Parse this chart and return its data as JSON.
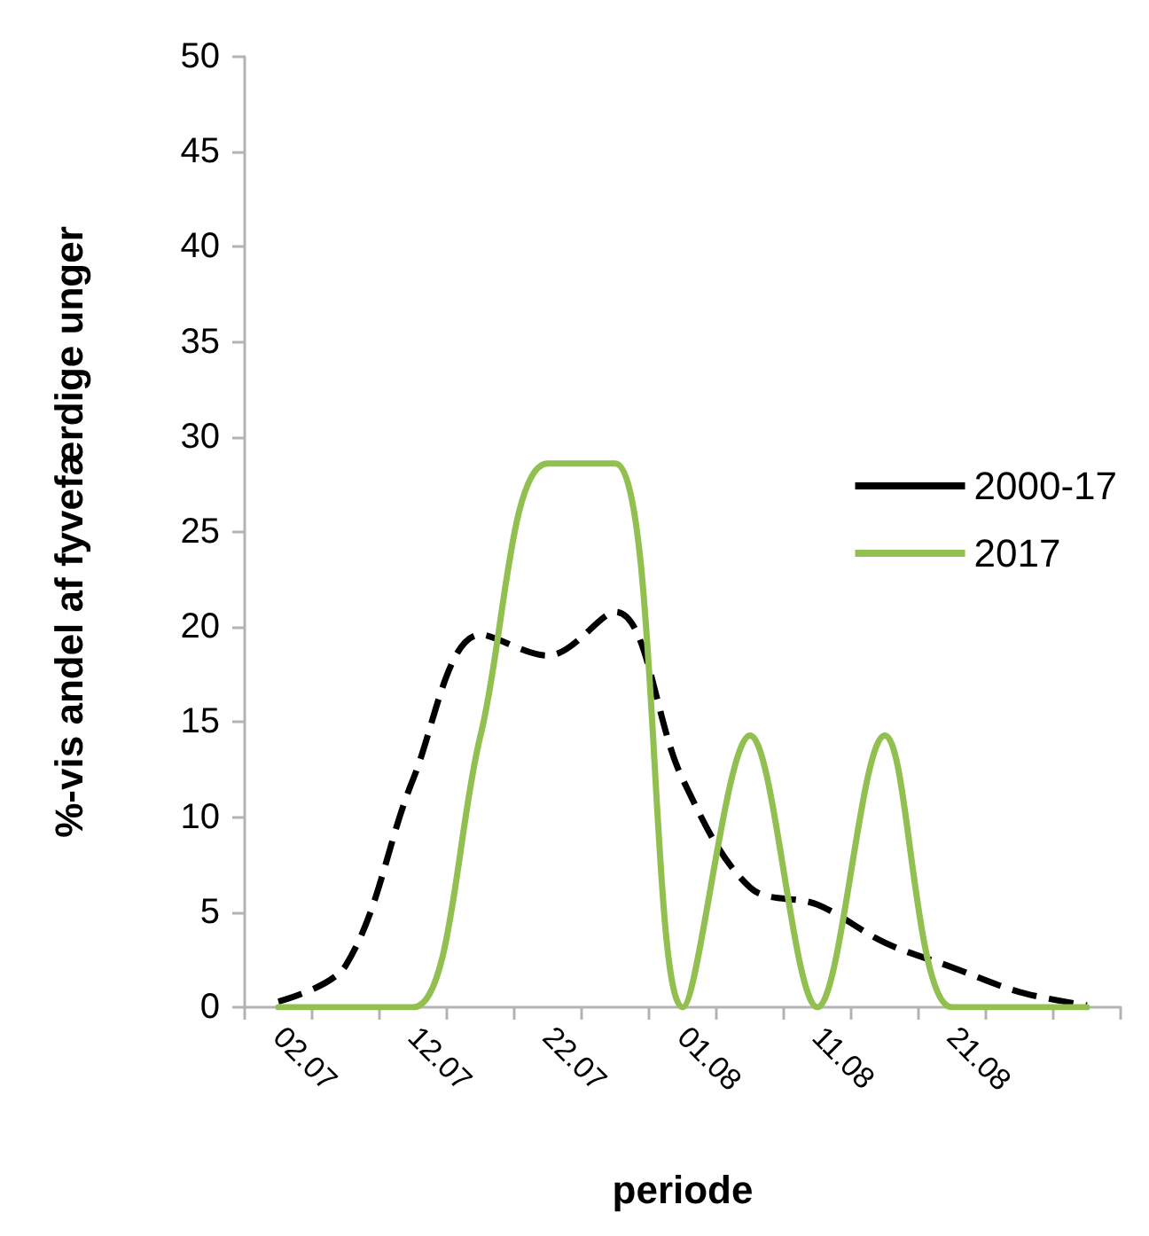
{
  "chart_data": {
    "type": "line",
    "xlabel": "periode",
    "ylabel": "%-vis andel af fyvefærdige unger",
    "categories": [
      "02.07",
      null,
      "12.07",
      null,
      "22.07",
      null,
      "01.08",
      null,
      "11.08",
      null,
      "21.08",
      null,
      null
    ],
    "series": [
      {
        "name": "2000-17",
        "color": "#000000",
        "line_style": "dashed",
        "values": [
          0.3,
          2.2,
          12,
          19.6,
          18.5,
          20.8,
          12,
          6.3,
          5.4,
          3.4,
          2.1,
          0.8,
          0.1
        ]
      },
      {
        "name": "2017",
        "color": "#92c050",
        "line_style": "solid",
        "values": [
          0,
          0,
          0,
          14.3,
          28.6,
          28.6,
          0,
          14.3,
          0,
          14.3,
          0,
          0,
          0
        ]
      }
    ],
    "ylim": [
      0,
      50
    ],
    "yticks": [
      0,
      5,
      10,
      15,
      20,
      25,
      30,
      35,
      40,
      45,
      50
    ],
    "grid": false,
    "legend": "top right",
    "marker": "none"
  }
}
